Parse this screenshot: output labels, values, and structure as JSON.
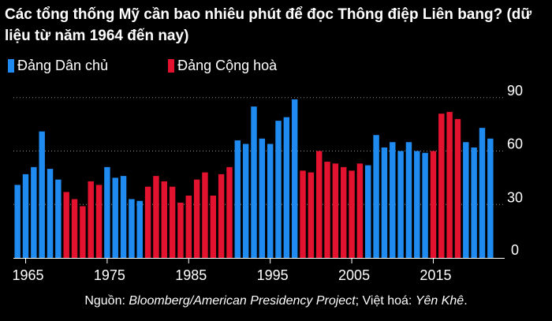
{
  "title": "Các tổng thống Mỹ cần bao nhiêu phút để đọc Thông điệp Liên bang? (dữ liệu từ năm 1964 đến nay)",
  "legend": [
    {
      "name": "Đảng Dân chủ",
      "color": "#1f8bf0"
    },
    {
      "name": "Đảng Cộng hoà",
      "color": "#e3122e"
    }
  ],
  "source": {
    "prefix": "Nguồn: ",
    "source_name": "Bloomberg/American Presidency Project",
    "mid": "; Việt hoá: ",
    "translator": "Yên Khê",
    "suffix": "."
  },
  "chart_data": {
    "type": "bar",
    "title": "Các tổng thống Mỹ cần bao nhiêu phút để đọc Thông điệp Liên bang? (dữ liệu từ năm 1964 đến nay)",
    "xlabel": "",
    "ylabel": "",
    "x_tick_labels": [
      "1965",
      "1975",
      "1985",
      "1995",
      "2005",
      "2015"
    ],
    "x_tick_values": [
      1965,
      1975,
      1985,
      1995,
      2005,
      2015
    ],
    "y_tick_labels": [
      "0",
      "30",
      "60",
      "90"
    ],
    "y_tick_values": [
      0,
      30,
      60,
      90
    ],
    "ylim": [
      0,
      93
    ],
    "grid": true,
    "legend_position": "top-left",
    "series": [
      {
        "name": "Đảng Dân chủ",
        "color": "#1f8bf0"
      },
      {
        "name": "Đảng Cộng hoà",
        "color": "#e3122e"
      }
    ],
    "data": [
      {
        "year": 1964,
        "value": 41,
        "party": "Đảng Dân chủ"
      },
      {
        "year": 1965,
        "value": 47,
        "party": "Đảng Dân chủ"
      },
      {
        "year": 1966,
        "value": 51,
        "party": "Đảng Dân chủ"
      },
      {
        "year": 1967,
        "value": 71,
        "party": "Đảng Dân chủ"
      },
      {
        "year": 1968,
        "value": 50,
        "party": "Đảng Dân chủ"
      },
      {
        "year": 1969,
        "value": 44,
        "party": "Đảng Dân chủ"
      },
      {
        "year": 1970,
        "value": 37,
        "party": "Đảng Cộng hoà"
      },
      {
        "year": 1971,
        "value": 33,
        "party": "Đảng Cộng hoà"
      },
      {
        "year": 1972,
        "value": 29,
        "party": "Đảng Cộng hoà"
      },
      {
        "year": 1973,
        "value": 43,
        "party": "Đảng Cộng hoà"
      },
      {
        "year": 1974,
        "value": 41,
        "party": "Đảng Cộng hoà"
      },
      {
        "year": 1975,
        "value": 51,
        "party": "Đảng Dân chủ"
      },
      {
        "year": 1976,
        "value": 45,
        "party": "Đảng Dân chủ"
      },
      {
        "year": 1977,
        "value": 46,
        "party": "Đảng Dân chủ"
      },
      {
        "year": 1978,
        "value": 33,
        "party": "Đảng Dân chủ"
      },
      {
        "year": 1979,
        "value": 32,
        "party": "Đảng Dân chủ"
      },
      {
        "year": 1980,
        "value": 40,
        "party": "Đảng Cộng hoà"
      },
      {
        "year": 1981,
        "value": 46,
        "party": "Đảng Cộng hoà"
      },
      {
        "year": 1982,
        "value": 43,
        "party": "Đảng Cộng hoà"
      },
      {
        "year": 1983,
        "value": 40,
        "party": "Đảng Cộng hoà"
      },
      {
        "year": 1984,
        "value": 31,
        "party": "Đảng Cộng hoà"
      },
      {
        "year": 1985,
        "value": 35,
        "party": "Đảng Cộng hoà"
      },
      {
        "year": 1986,
        "value": 44,
        "party": "Đảng Cộng hoà"
      },
      {
        "year": 1987,
        "value": 48,
        "party": "Đảng Cộng hoà"
      },
      {
        "year": 1988,
        "value": 35,
        "party": "Đảng Cộng hoà"
      },
      {
        "year": 1989,
        "value": 47,
        "party": "Đảng Cộng hoà"
      },
      {
        "year": 1990,
        "value": 51,
        "party": "Đảng Cộng hoà"
      },
      {
        "year": 1991,
        "value": 66,
        "party": "Đảng Dân chủ"
      },
      {
        "year": 1992,
        "value": 64,
        "party": "Đảng Dân chủ"
      },
      {
        "year": 1993,
        "value": 85,
        "party": "Đảng Dân chủ"
      },
      {
        "year": 1994,
        "value": 67,
        "party": "Đảng Dân chủ"
      },
      {
        "year": 1995,
        "value": 64,
        "party": "Đảng Dân chủ"
      },
      {
        "year": 1996,
        "value": 77,
        "party": "Đảng Dân chủ"
      },
      {
        "year": 1997,
        "value": 79,
        "party": "Đảng Dân chủ"
      },
      {
        "year": 1998,
        "value": 89,
        "party": "Đảng Dân chủ"
      },
      {
        "year": 1999,
        "value": 49,
        "party": "Đảng Cộng hoà"
      },
      {
        "year": 2000,
        "value": 48,
        "party": "Đảng Cộng hoà"
      },
      {
        "year": 2001,
        "value": 60,
        "party": "Đảng Cộng hoà"
      },
      {
        "year": 2002,
        "value": 54,
        "party": "Đảng Cộng hoà"
      },
      {
        "year": 2003,
        "value": 53,
        "party": "Đảng Cộng hoà"
      },
      {
        "year": 2004,
        "value": 51,
        "party": "Đảng Cộng hoà"
      },
      {
        "year": 2005,
        "value": 49,
        "party": "Đảng Cộng hoà"
      },
      {
        "year": 2006,
        "value": 53,
        "party": "Đảng Cộng hoà"
      },
      {
        "year": 2007,
        "value": 52,
        "party": "Đảng Dân chủ"
      },
      {
        "year": 2008,
        "value": 69,
        "party": "Đảng Dân chủ"
      },
      {
        "year": 2009,
        "value": 62,
        "party": "Đảng Dân chủ"
      },
      {
        "year": 2010,
        "value": 65,
        "party": "Đảng Dân chủ"
      },
      {
        "year": 2011,
        "value": 60,
        "party": "Đảng Dân chủ"
      },
      {
        "year": 2012,
        "value": 65,
        "party": "Đảng Dân chủ"
      },
      {
        "year": 2013,
        "value": 60,
        "party": "Đảng Dân chủ"
      },
      {
        "year": 2014,
        "value": 59,
        "party": "Đảng Dân chủ"
      },
      {
        "year": 2015,
        "value": 60,
        "party": "Đảng Cộng hoà"
      },
      {
        "year": 2016,
        "value": 81,
        "party": "Đảng Cộng hoà"
      },
      {
        "year": 2017,
        "value": 82,
        "party": "Đảng Cộng hoà"
      },
      {
        "year": 2018,
        "value": 78,
        "party": "Đảng Cộng hoà"
      },
      {
        "year": 2019,
        "value": 65,
        "party": "Đảng Dân chủ"
      },
      {
        "year": 2020,
        "value": 62,
        "party": "Đảng Dân chủ"
      },
      {
        "year": 2021,
        "value": 73,
        "party": "Đảng Dân chủ"
      },
      {
        "year": 2022,
        "value": 67,
        "party": "Đảng Dân chủ"
      }
    ]
  }
}
